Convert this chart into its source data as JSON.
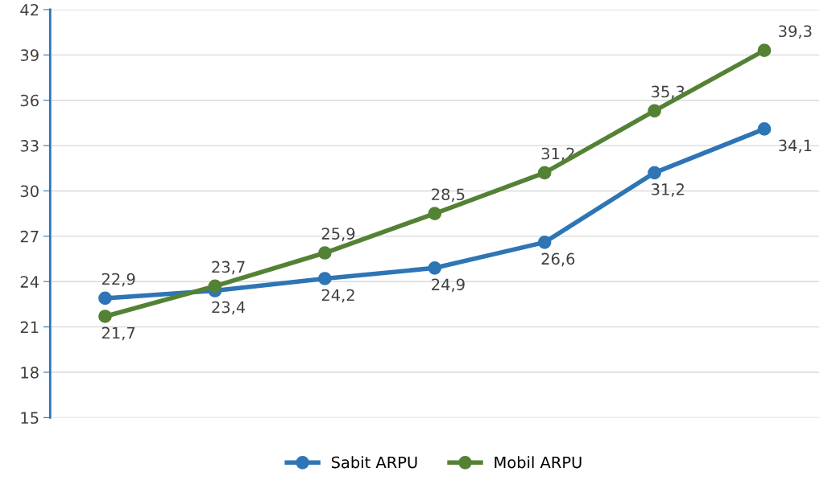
{
  "chart_data": {
    "type": "line",
    "categories": [
      null,
      null,
      null,
      null,
      null,
      null,
      null
    ],
    "series": [
      {
        "name": "Sabit ARPU",
        "color": "#2e75b6",
        "values": [
          22.9,
          23.4,
          24.2,
          24.9,
          26.6,
          31.2,
          34.1
        ],
        "value_labels": [
          "22,9",
          "23,4",
          "24,2",
          "24,9",
          "26,6",
          "31,2",
          "34,1"
        ]
      },
      {
        "name": "Mobil ARPU",
        "color": "#548235",
        "values": [
          21.7,
          23.7,
          25.9,
          28.5,
          31.2,
          35.3,
          39.3
        ],
        "value_labels": [
          "21,7",
          "23,7",
          "25,9",
          "28,5",
          "31,2",
          "35,3",
          "39,3"
        ]
      }
    ],
    "ylim": [
      15,
      42
    ],
    "yticks": [
      15,
      18,
      21,
      24,
      27,
      30,
      33,
      36,
      39,
      42
    ],
    "grid": "y",
    "legend": "bottom",
    "marker": "circle",
    "line_style": "solid"
  }
}
